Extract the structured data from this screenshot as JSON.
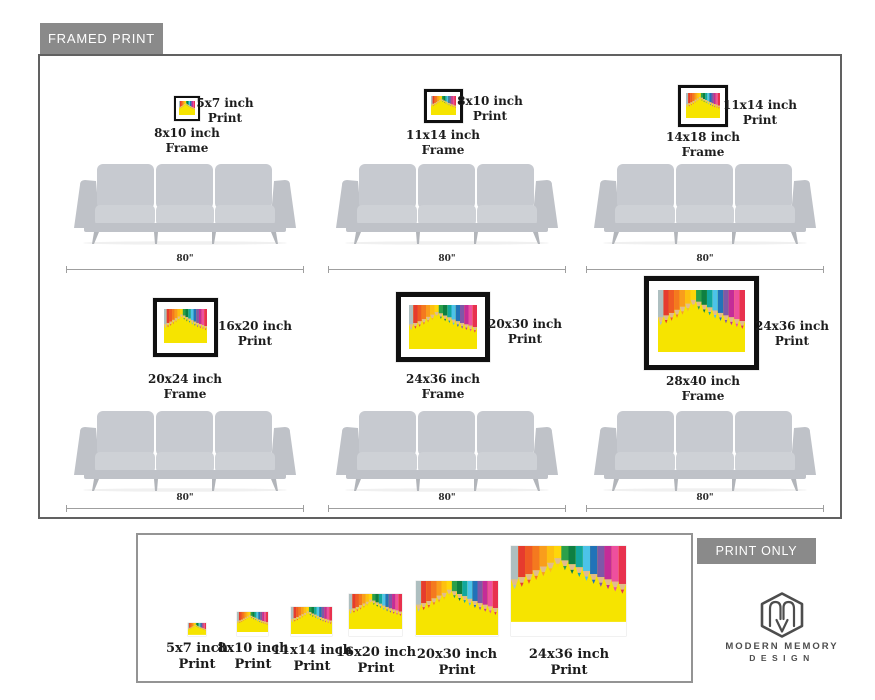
{
  "framed_section": {
    "badge": "FRAMED PRINT",
    "sofa_width_label": "80\"",
    "cells": [
      {
        "print_size": "5x7 inch",
        "frame_size": "8x10 inch"
      },
      {
        "print_size": "8x10 inch",
        "frame_size": "11x14 inch"
      },
      {
        "print_size": "11x14 inch",
        "frame_size": "14x18 inch"
      },
      {
        "print_size": "16x20 inch",
        "frame_size": "20x24 inch"
      },
      {
        "print_size": "20x30 inch",
        "frame_size": "24x36 inch"
      },
      {
        "print_size": "24x36 inch",
        "frame_size": "28x40 inch"
      }
    ]
  },
  "print_section": {
    "badge": "PRINT ONLY",
    "items": [
      {
        "size": "5x7 inch"
      },
      {
        "size": "8x10 inch"
      },
      {
        "size": "11x14 inch"
      },
      {
        "size": "16x20 inch"
      },
      {
        "size": "20x30 inch"
      },
      {
        "size": "24x36 inch"
      }
    ]
  },
  "labels": {
    "print_word": "Print",
    "frame_word": "Frame"
  },
  "brand": {
    "line1": "MODERN MEMORY",
    "line2": "DESIGN"
  },
  "artwork": {
    "background": "#f6e400",
    "wood": "#e2bb8d",
    "pencil_colors": [
      "#aebfc0",
      "#e63b2e",
      "#ef5a24",
      "#f4791f",
      "#f99d1c",
      "#fdc010",
      "#ffd60a",
      "#2ca04a",
      "#0e7f41",
      "#12a79e",
      "#4cc3e9",
      "#2173b8",
      "#7e58a8",
      "#c42c98",
      "#ee4f9e",
      "#e8314e"
    ],
    "pencil_drops": [
      0.44,
      0.41,
      0.37,
      0.32,
      0.27,
      0.22,
      0.16,
      0.19,
      0.24,
      0.28,
      0.33,
      0.37,
      0.41,
      0.44,
      0.47,
      0.5
    ]
  },
  "colors": {
    "badge_bg": "#8a8a8a",
    "framed_panel_border": "#616161",
    "print_panel_border": "#949494",
    "frame_molding": "#101010",
    "sofa_body": "#c7cad0",
    "sofa_arm": "#bfc2c8",
    "sofa_seat": "#ced1d6",
    "sofa_leg": "#b2b5ba",
    "logo": "#4d4d4d"
  }
}
